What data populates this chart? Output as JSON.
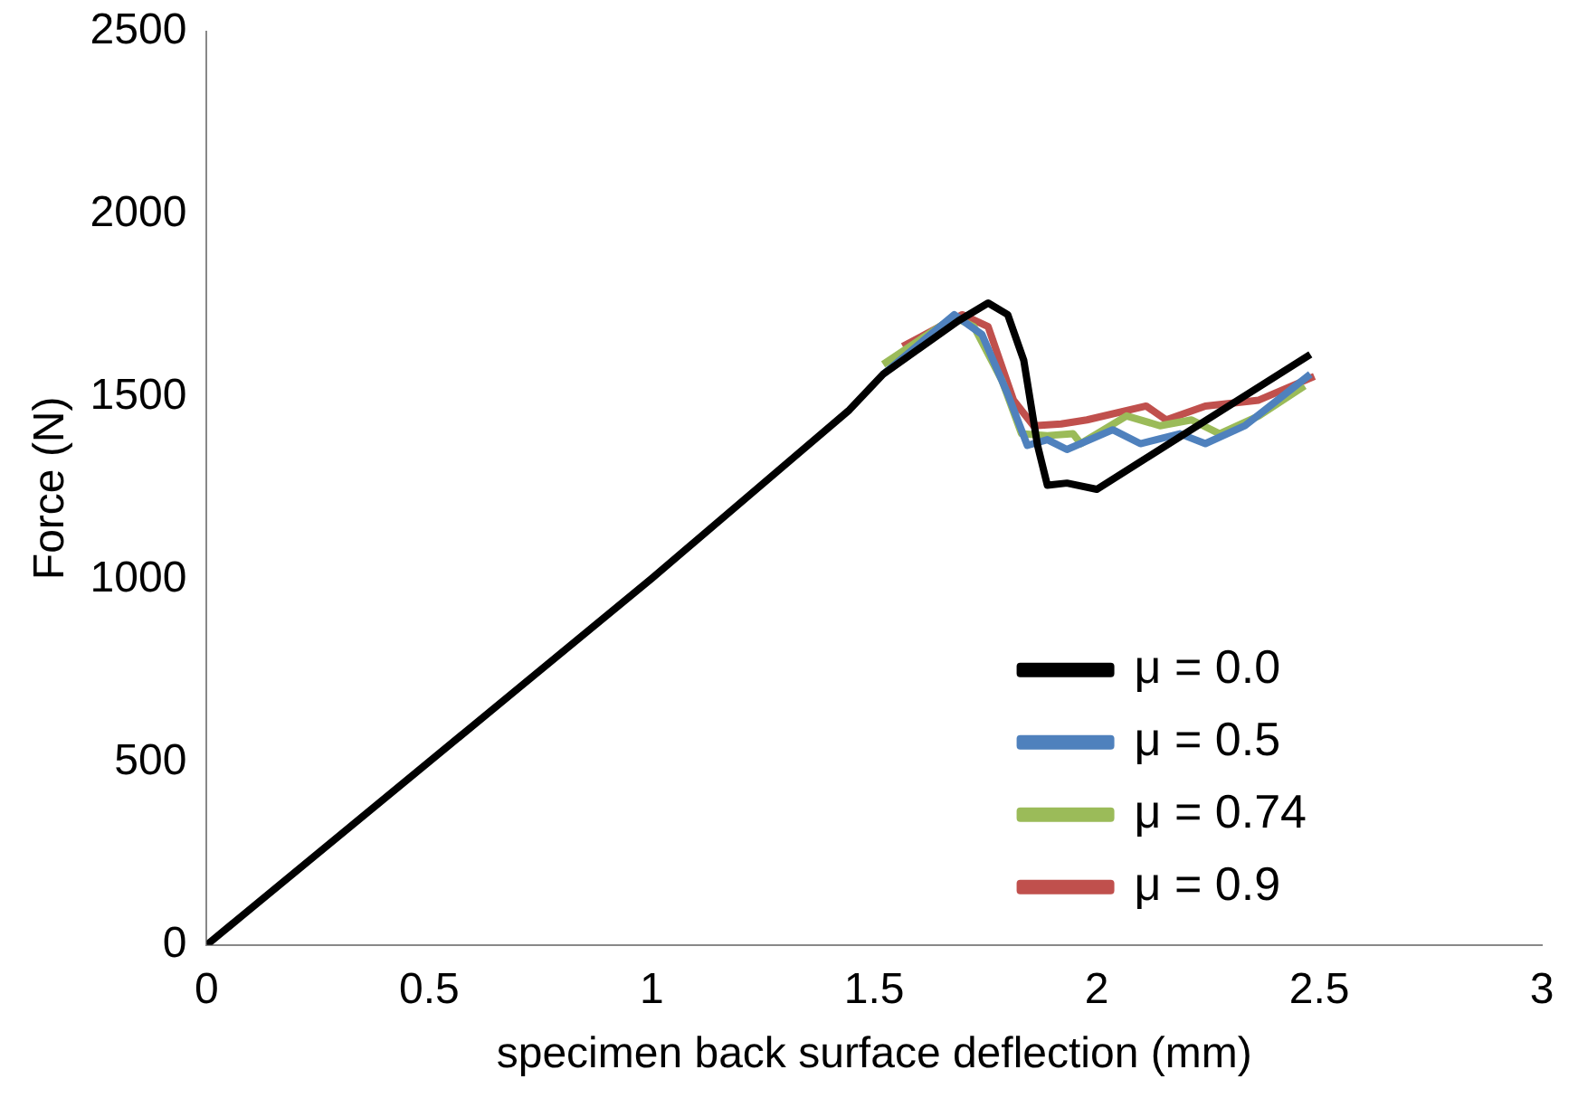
{
  "chart_data": {
    "type": "line",
    "xlabel": "specimen back surface deflection (mm)",
    "ylabel": "Force (N)",
    "xlim": [
      0,
      3
    ],
    "xticks": [
      0,
      0.5,
      1,
      1.5,
      2,
      2.5,
      3
    ],
    "ylim": [
      0,
      2500
    ],
    "yticks": [
      0,
      500,
      1000,
      1500,
      2000,
      2500
    ],
    "grid": false,
    "legend": "bottom right",
    "marker": "none",
    "line_style": "solid",
    "series": [
      {
        "name": "μ = 0.0",
        "color": "#000000",
        "x": [
          0,
          1,
          1.444,
          1.52,
          1.689,
          1.756,
          1.8,
          1.836,
          1.867,
          1.889,
          1.933,
          2.0,
          2.48
        ],
        "values": [
          0,
          1003,
          1464,
          1562,
          1708,
          1757,
          1725,
          1600,
          1367,
          1258,
          1264,
          1247,
          1616
        ]
      },
      {
        "name": "μ = 0.5",
        "color": "#4f81bd",
        "x": [
          1.52,
          1.68,
          1.742,
          1.8,
          1.844,
          1.889,
          1.933,
          2.036,
          2.098,
          2.187,
          2.244,
          2.333,
          2.48
        ],
        "values": [
          1562,
          1725,
          1671,
          1508,
          1367,
          1383,
          1356,
          1410,
          1372,
          1399,
          1372,
          1421,
          1562
        ]
      },
      {
        "name": "μ = 0.74",
        "color": "#9bbb59",
        "x": [
          1.52,
          1.68,
          1.724,
          1.787,
          1.831,
          1.889,
          1.947,
          1.964,
          2.067,
          2.142,
          2.213,
          2.276,
          2.364,
          2.467
        ],
        "values": [
          1589,
          1719,
          1692,
          1545,
          1399,
          1394,
          1399,
          1372,
          1448,
          1421,
          1437,
          1399,
          1448,
          1530
        ]
      },
      {
        "name": "μ = 0.9",
        "color": "#c0504d",
        "x": [
          1.564,
          1.698,
          1.756,
          1.813,
          1.858,
          1.92,
          1.978,
          2.111,
          2.156,
          2.244,
          2.364,
          2.489
        ],
        "values": [
          1638,
          1725,
          1692,
          1491,
          1421,
          1426,
          1437,
          1475,
          1437,
          1475,
          1491,
          1556
        ]
      }
    ]
  }
}
